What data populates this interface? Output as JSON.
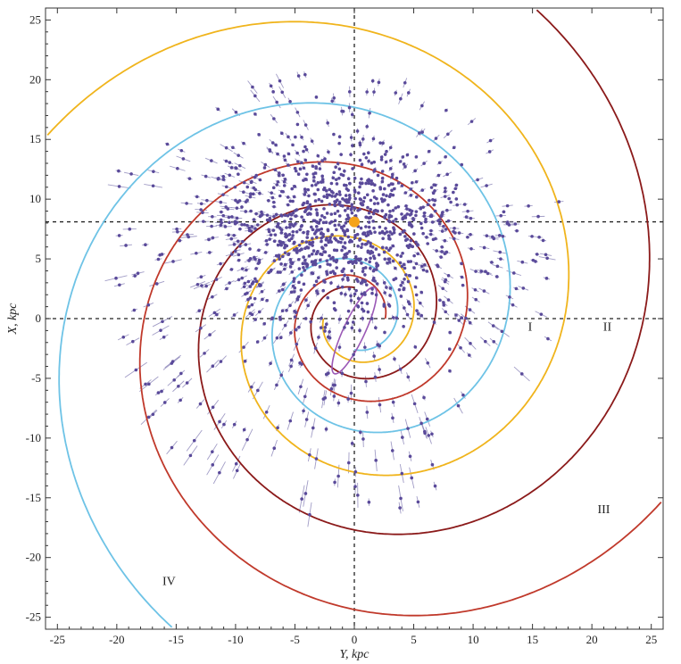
{
  "chart_data": {
    "type": "scatter",
    "title": "",
    "xlabel": "Y, kpc",
    "ylabel": "X, kpc",
    "xlim": [
      -26,
      26
    ],
    "ylim": [
      -26,
      26
    ],
    "x_ticks": [
      "-25",
      "-20",
      "-15",
      "-10",
      "-5",
      "0",
      "5",
      "10",
      "15",
      "20",
      "25"
    ],
    "y_ticks": [
      "25",
      "20",
      "15",
      "10",
      "5",
      "0",
      "-5",
      "-10",
      "-15",
      "-20",
      "-25"
    ],
    "reference_lines": {
      "vertical_x": 0,
      "horizontal_y": [
        0,
        8.1
      ]
    },
    "sun": {
      "x": 0,
      "y": 8.1,
      "color": "#f5a31a"
    },
    "arm_labels": [
      {
        "text": "I",
        "x": 14.8,
        "y": -1.0
      },
      {
        "text": "II",
        "x": 21.3,
        "y": -1.0
      },
      {
        "text": "III",
        "x": 21.0,
        "y": -16.3
      },
      {
        "text": "IV",
        "x": -15.6,
        "y": -22.3
      }
    ],
    "series": [
      {
        "color": "#c0392b",
        "start_angle_deg": 0,
        "r0": 2.6,
        "pitch_deg": 11.5
      },
      {
        "color": "#8b1a1a",
        "start_angle_deg": 90,
        "r0": 2.6,
        "pitch_deg": 11.5
      },
      {
        "color": "#f0b41c",
        "start_angle_deg": 180,
        "r0": 2.6,
        "pitch_deg": 11.5
      },
      {
        "color": "#6ec3e6",
        "start_angle_deg": 270,
        "r0": 2.6,
        "pitch_deg": 11.5
      }
    ],
    "bar": {
      "color": "#9b59b6",
      "center": [
        0,
        -1.0
      ],
      "semi_major": 4.0,
      "semi_minor": 0.9,
      "angle_deg": 65
    },
    "points_color": "#5a4a9a",
    "error_bar_color": "#8a84b8"
  }
}
